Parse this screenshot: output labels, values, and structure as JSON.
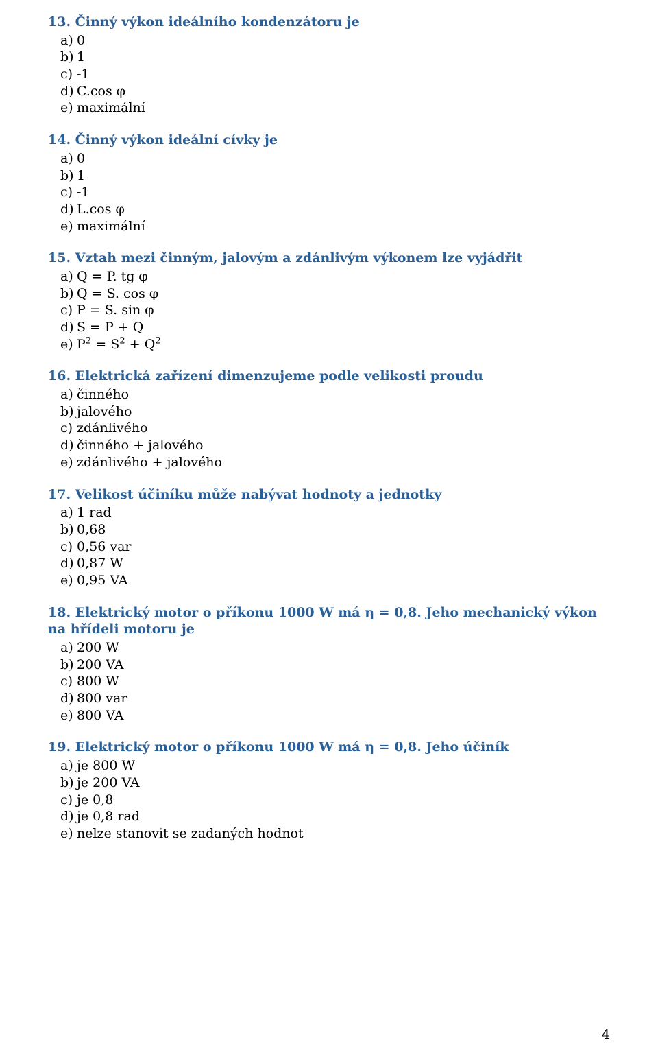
{
  "style": {
    "heading_color": "#2a6099",
    "body_color": "#000000",
    "background_color": "#ffffff",
    "font_family": "DejaVu Serif, Georgia, Times New Roman, serif",
    "title_fontsize": 19,
    "body_fontsize": 19,
    "title_fontweight": "bold"
  },
  "page_number": "4",
  "questions": [
    {
      "number": "13.",
      "title": "Činný výkon ideálního kondenzátoru je",
      "options": [
        {
          "l": "a)",
          "t": "0"
        },
        {
          "l": "b)",
          "t": "1"
        },
        {
          "l": "c)",
          "t": "-1"
        },
        {
          "l": "d)",
          "t": "C.cos φ"
        },
        {
          "l": "e)",
          "t": "maximální"
        }
      ]
    },
    {
      "number": "14.",
      "title": "Činný výkon ideální cívky je",
      "options": [
        {
          "l": "a)",
          "t": "0"
        },
        {
          "l": "b)",
          "t": "1"
        },
        {
          "l": "c)",
          "t": "-1"
        },
        {
          "l": "d)",
          "t": "L.cos φ"
        },
        {
          "l": "e)",
          "t": "maximální"
        }
      ]
    },
    {
      "number": "15.",
      "title": "Vztah mezi činným, jalovým a zdánlivým výkonem lze vyjádřit",
      "options": [
        {
          "l": "a)",
          "t": "Q = P. tg φ"
        },
        {
          "l": "b)",
          "t": "Q = S. cos φ"
        },
        {
          "l": "c)",
          "t": "P = S. sin φ"
        },
        {
          "l": "d)",
          "t": "S = P + Q"
        },
        {
          "l": "e)",
          "t_html": "P<sup>2</sup> = S<sup>2</sup> + Q<sup>2</sup>"
        }
      ]
    },
    {
      "number": "16.",
      "title": "Elektrická zařízení dimenzujeme podle velikosti proudu",
      "options": [
        {
          "l": "a)",
          "t": "činného"
        },
        {
          "l": "b)",
          "t": "jalového"
        },
        {
          "l": "c)",
          "t": "zdánlivého"
        },
        {
          "l": "d)",
          "t": "činného + jalového"
        },
        {
          "l": "e)",
          "t": "zdánlivého + jalového"
        }
      ]
    },
    {
      "number": "17.",
      "title": "Velikost účiníku může nabývat hodnoty a jednotky",
      "options": [
        {
          "l": "a)",
          "t": "1 rad"
        },
        {
          "l": "b)",
          "t": "0,68"
        },
        {
          "l": "c)",
          "t": "0,56 var"
        },
        {
          "l": "d)",
          "t": "0,87 W"
        },
        {
          "l": "e)",
          "t": "0,95 VA"
        }
      ]
    },
    {
      "number": "18.",
      "title": "Elektrický motor o příkonu 1000 W má η = 0,8. Jeho mechanický výkon na hřídeli motoru je",
      "options": [
        {
          "l": "a)",
          "t": "200 W"
        },
        {
          "l": "b)",
          "t": "200 VA"
        },
        {
          "l": "c)",
          "t": "800 W"
        },
        {
          "l": "d)",
          "t": "800 var"
        },
        {
          "l": "e)",
          "t": "800 VA"
        }
      ]
    },
    {
      "number": "19.",
      "title": "Elektrický motor o příkonu 1000 W má η = 0,8. Jeho účiník",
      "options": [
        {
          "l": "a)",
          "t": "je 800 W"
        },
        {
          "l": "b)",
          "t": "je 200 VA"
        },
        {
          "l": "c)",
          "t": "je 0,8"
        },
        {
          "l": "d)",
          "t": "je 0,8 rad"
        },
        {
          "l": "e)",
          "t": "nelze stanovit se zadaných hodnot"
        }
      ]
    }
  ]
}
